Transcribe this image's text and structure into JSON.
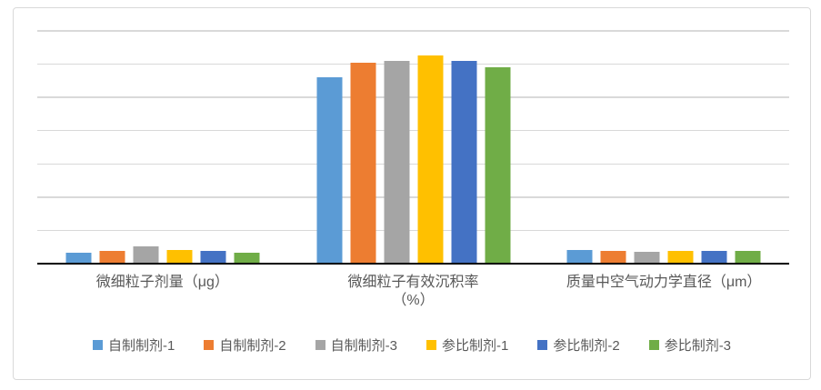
{
  "chart_data": {
    "type": "bar",
    "title": "",
    "xlabel": "",
    "ylabel": "",
    "categories": [
      "微细粒子剂量（μg）",
      "微细粒子有效沉积率（%）",
      "质量中空气动力学直径（μm）"
    ],
    "category_label_lines": [
      [
        "微细粒子剂量（μg）"
      ],
      [
        "微细粒子有效沉积率",
        "（%）"
      ],
      [
        "质量中空气动力学直径（μm）"
      ]
    ],
    "series": [
      {
        "name": "自制制剂-1",
        "color": "#5B9BD5",
        "values": [
          3.4,
          56.0,
          4.1
        ]
      },
      {
        "name": "自制制剂-2",
        "color": "#ED7D31",
        "values": [
          3.8,
          60.5,
          3.9
        ]
      },
      {
        "name": "自制制剂-3",
        "color": "#A5A5A5",
        "values": [
          5.1,
          61.0,
          3.5
        ]
      },
      {
        "name": "参比制剂-1",
        "color": "#FFC000",
        "values": [
          4.1,
          62.5,
          3.9
        ]
      },
      {
        "name": "参比制剂-2",
        "color": "#4472C4",
        "values": [
          3.8,
          61.0,
          3.7
        ]
      },
      {
        "name": "参比制剂-3",
        "color": "#70AD47",
        "values": [
          3.4,
          59.0,
          3.7
        ]
      }
    ],
    "ylim": [
      0,
      70
    ],
    "gridline_interval": 10,
    "grid": true,
    "y_axis_labels_visible": false,
    "legend_position": "bottom"
  },
  "styles": {
    "gridline_color": "#D9D9D9",
    "axis_color": "#000000",
    "label_color": "#595959",
    "frame_border_color": "#D9D9D9",
    "background_color": "#FFFFFF"
  }
}
